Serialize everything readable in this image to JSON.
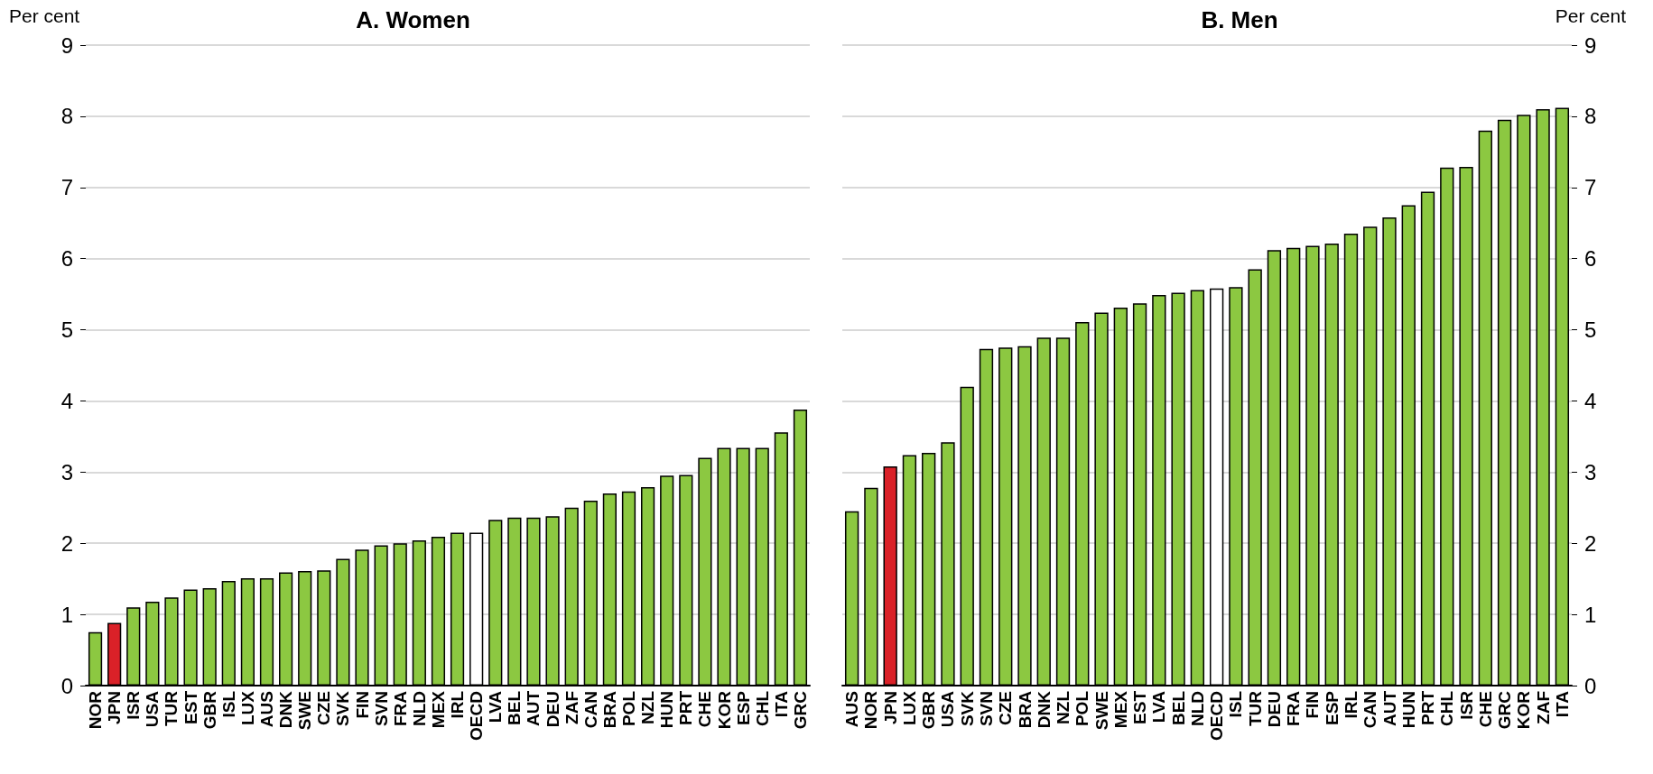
{
  "chart_data": [
    {
      "type": "bar",
      "title": "A. Women",
      "ylabel": "Per cent",
      "grid": "y",
      "ylim": [
        0,
        9
      ],
      "yticks": [
        0,
        1,
        2,
        3,
        4,
        5,
        6,
        7,
        8,
        9
      ],
      "categories": [
        "NOR",
        "JPN",
        "ISR",
        "USA",
        "TUR",
        "EST",
        "GBR",
        "ISL",
        "LUX",
        "AUS",
        "DNK",
        "SWE",
        "CZE",
        "SVK",
        "FIN",
        "SVN",
        "FRA",
        "NLD",
        "MEX",
        "IRL",
        "OECD",
        "LVA",
        "BEL",
        "AUT",
        "DEU",
        "ZAF",
        "CAN",
        "BRA",
        "POL",
        "NZL",
        "HUN",
        "PRT",
        "CHE",
        "KOR",
        "ESP",
        "CHL",
        "ITA",
        "GRC"
      ],
      "values": [
        0.75,
        0.88,
        1.1,
        1.18,
        1.24,
        1.35,
        1.37,
        1.47,
        1.51,
        1.51,
        1.59,
        1.61,
        1.62,
        1.78,
        1.91,
        1.97,
        2.0,
        2.04,
        2.09,
        2.15,
        2.15,
        2.33,
        2.36,
        2.36,
        2.38,
        2.5,
        2.6,
        2.7,
        2.73,
        2.79,
        2.95,
        2.96,
        3.2,
        3.34,
        3.34,
        3.34,
        3.56,
        3.88
      ],
      "colors": [
        "#8cc841",
        "#da2128",
        "#8cc841",
        "#8cc841",
        "#8cc841",
        "#8cc841",
        "#8cc841",
        "#8cc841",
        "#8cc841",
        "#8cc841",
        "#8cc841",
        "#8cc841",
        "#8cc841",
        "#8cc841",
        "#8cc841",
        "#8cc841",
        "#8cc841",
        "#8cc841",
        "#8cc841",
        "#8cc841",
        "#ffffff",
        "#8cc841",
        "#8cc841",
        "#8cc841",
        "#8cc841",
        "#8cc841",
        "#8cc841",
        "#8cc841",
        "#8cc841",
        "#8cc841",
        "#8cc841",
        "#8cc841",
        "#8cc841",
        "#8cc841",
        "#8cc841",
        "#8cc841",
        "#8cc841",
        "#8cc841"
      ]
    },
    {
      "type": "bar",
      "title": "B. Men",
      "ylabel": "Per cent",
      "grid": "y",
      "ylim": [
        0,
        9
      ],
      "yticks": [
        0,
        1,
        2,
        3,
        4,
        5,
        6,
        7,
        8,
        9
      ],
      "categories": [
        "AUS",
        "NOR",
        "JPN",
        "LUX",
        "GBR",
        "USA",
        "SVK",
        "SVN",
        "CZE",
        "BRA",
        "DNK",
        "NZL",
        "POL",
        "SWE",
        "MEX",
        "EST",
        "LVA",
        "BEL",
        "NLD",
        "OECD",
        "ISL",
        "TUR",
        "DEU",
        "FRA",
        "FIN",
        "ESP",
        "IRL",
        "CAN",
        "AUT",
        "HUN",
        "PRT",
        "CHL",
        "ISR",
        "CHE",
        "GRC",
        "KOR",
        "ZAF",
        "ITA"
      ],
      "values": [
        2.45,
        2.78,
        3.08,
        3.24,
        3.27,
        3.42,
        4.2,
        4.73,
        4.75,
        4.77,
        4.89,
        4.89,
        5.11,
        5.24,
        5.31,
        5.37,
        5.49,
        5.52,
        5.56,
        5.58,
        5.6,
        5.85,
        6.12,
        6.15,
        6.18,
        6.21,
        6.35,
        6.45,
        6.58,
        6.75,
        6.94,
        7.28,
        7.29,
        7.8,
        7.95,
        8.02,
        8.1,
        8.12
      ],
      "colors": [
        "#8cc841",
        "#8cc841",
        "#da2128",
        "#8cc841",
        "#8cc841",
        "#8cc841",
        "#8cc841",
        "#8cc841",
        "#8cc841",
        "#8cc841",
        "#8cc841",
        "#8cc841",
        "#8cc841",
        "#8cc841",
        "#8cc841",
        "#8cc841",
        "#8cc841",
        "#8cc841",
        "#8cc841",
        "#ffffff",
        "#8cc841",
        "#8cc841",
        "#8cc841",
        "#8cc841",
        "#8cc841",
        "#8cc841",
        "#8cc841",
        "#8cc841",
        "#8cc841",
        "#8cc841",
        "#8cc841",
        "#8cc841",
        "#8cc841",
        "#8cc841",
        "#8cc841",
        "#8cc841",
        "#8cc841",
        "#8cc841"
      ]
    }
  ]
}
